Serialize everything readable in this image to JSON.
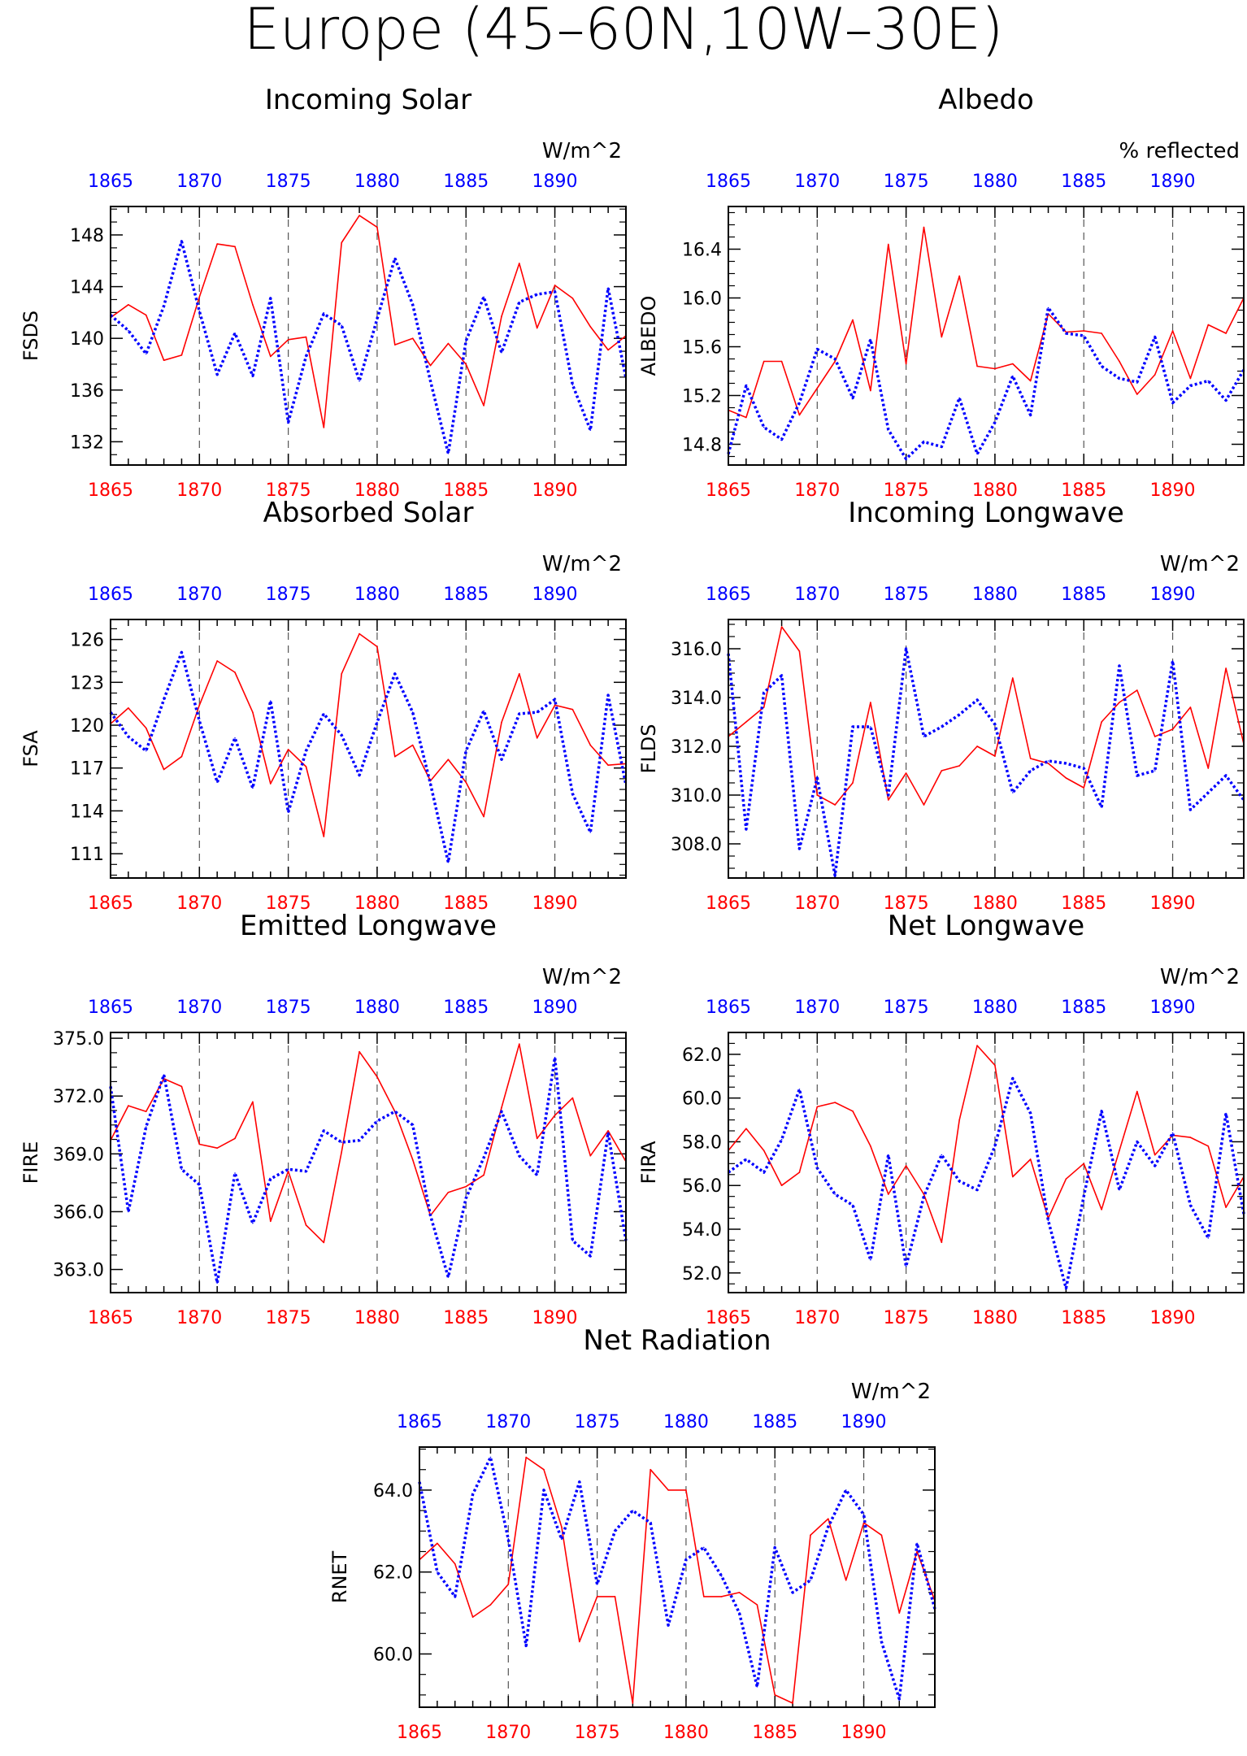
{
  "title": "Europe (45–60N,10W–30E)",
  "colors": {
    "red_series": "#ff0000",
    "blue_series": "#0000ff",
    "red_axis": "#ff0000",
    "blue_axis": "#0000ff",
    "frame": "#000000",
    "grid": "#555555"
  },
  "chart_data": [
    {
      "id": "fsds",
      "type": "line",
      "title": "Incoming Solar",
      "ylabel": "FSDS",
      "units": "W/m^2",
      "x": [
        1865,
        1866,
        1867,
        1868,
        1869,
        1870,
        1871,
        1872,
        1873,
        1874,
        1875,
        1876,
        1877,
        1878,
        1879,
        1880,
        1881,
        1882,
        1883,
        1884,
        1885,
        1886,
        1887,
        1888,
        1889,
        1890,
        1891,
        1892,
        1893,
        1894
      ],
      "xlim": [
        1865,
        1894
      ],
      "ylim": [
        130.2,
        150.2
      ],
      "yticks": [
        132,
        136,
        140,
        144,
        148
      ],
      "ytick_labels": [
        "132",
        "136",
        "140",
        "144",
        "148"
      ],
      "bottom_axis_ticks": [
        "1865",
        "1870",
        "1875",
        "1880",
        "1885",
        "1890"
      ],
      "top_axis_ticks": [
        "1865",
        "1870",
        "1875",
        "1880",
        "1885",
        "1890"
      ],
      "series": [
        {
          "color": "red",
          "style": "solid",
          "values": [
            141.6,
            142.6,
            141.8,
            138.3,
            138.7,
            143.2,
            147.3,
            147.1,
            142.6,
            138.6,
            139.9,
            140.1,
            133.1,
            147.4,
            149.5,
            148.6,
            139.5,
            140.0,
            137.9,
            139.6,
            138.0,
            134.8,
            141.7,
            145.8,
            140.8,
            144.1,
            143.1,
            140.9,
            139.1,
            140.2
          ]
        },
        {
          "color": "blue",
          "style": "dotted",
          "values": [
            141.8,
            140.6,
            138.8,
            142.5,
            147.5,
            142.1,
            137.2,
            140.4,
            137.1,
            143.1,
            133.5,
            138.6,
            141.9,
            141.0,
            136.7,
            141.5,
            146.2,
            142.6,
            136.7,
            131.1,
            139.8,
            143.2,
            138.9,
            142.8,
            143.4,
            143.6,
            136.4,
            132.9,
            143.9,
            136.9
          ]
        }
      ]
    },
    {
      "id": "albedo",
      "type": "line",
      "title": "Albedo",
      "ylabel": "ALBEDO",
      "units": "% reflected",
      "x": [
        1865,
        1866,
        1867,
        1868,
        1869,
        1870,
        1871,
        1872,
        1873,
        1874,
        1875,
        1876,
        1877,
        1878,
        1879,
        1880,
        1881,
        1882,
        1883,
        1884,
        1885,
        1886,
        1887,
        1888,
        1889,
        1890,
        1891,
        1892,
        1893,
        1894
      ],
      "xlim": [
        1865,
        1894
      ],
      "ylim": [
        14.63,
        16.75
      ],
      "yticks": [
        14.8,
        15.2,
        15.6,
        16.0,
        16.4
      ],
      "ytick_labels": [
        "14.8",
        "15.2",
        "15.6",
        "16.0",
        "16.4"
      ],
      "bottom_axis_ticks": [
        "1865",
        "1870",
        "1875",
        "1880",
        "1885",
        "1890"
      ],
      "top_axis_ticks": [
        "1865",
        "1870",
        "1875",
        "1880",
        "1885",
        "1890"
      ],
      "series": [
        {
          "color": "red",
          "style": "solid",
          "values": [
            15.08,
            15.02,
            15.48,
            15.48,
            15.04,
            15.26,
            15.48,
            15.82,
            15.24,
            16.44,
            15.46,
            16.58,
            15.68,
            16.18,
            15.44,
            15.42,
            15.46,
            15.32,
            15.87,
            15.72,
            15.73,
            15.71,
            15.48,
            15.21,
            15.37,
            15.73,
            15.34,
            15.78,
            15.71,
            16.0
          ]
        },
        {
          "color": "blue",
          "style": "dotted",
          "values": [
            14.72,
            15.28,
            14.94,
            14.84,
            15.14,
            15.58,
            15.5,
            15.18,
            15.66,
            14.92,
            14.68,
            14.82,
            14.78,
            15.18,
            14.72,
            14.98,
            15.36,
            15.04,
            15.92,
            15.71,
            15.69,
            15.44,
            15.34,
            15.31,
            15.68,
            15.14,
            15.28,
            15.32,
            15.16,
            15.41
          ]
        }
      ]
    },
    {
      "id": "fsa",
      "type": "line",
      "title": "Absorbed Solar",
      "ylabel": "FSA",
      "units": "W/m^2",
      "x": [
        1865,
        1866,
        1867,
        1868,
        1869,
        1870,
        1871,
        1872,
        1873,
        1874,
        1875,
        1876,
        1877,
        1878,
        1879,
        1880,
        1881,
        1882,
        1883,
        1884,
        1885,
        1886,
        1887,
        1888,
        1889,
        1890,
        1891,
        1892,
        1893,
        1894
      ],
      "xlim": [
        1865,
        1894
      ],
      "ylim": [
        109.3,
        127.4
      ],
      "yticks": [
        111,
        114,
        117,
        120,
        123,
        126
      ],
      "ytick_labels": [
        "111",
        "114",
        "117",
        "120",
        "123",
        "126"
      ],
      "bottom_axis_ticks": [
        "1865",
        "1870",
        "1875",
        "1880",
        "1885",
        "1890"
      ],
      "top_axis_ticks": [
        "1865",
        "1870",
        "1875",
        "1880",
        "1885",
        "1890"
      ],
      "series": [
        {
          "color": "red",
          "style": "solid",
          "values": [
            120.1,
            121.2,
            119.8,
            116.9,
            117.8,
            121.4,
            124.5,
            123.7,
            120.9,
            115.9,
            118.3,
            117.1,
            112.2,
            123.6,
            126.4,
            125.5,
            117.8,
            118.6,
            116.1,
            117.6,
            116.0,
            113.6,
            120.2,
            123.6,
            119.1,
            121.4,
            121.1,
            118.6,
            117.2,
            117.3
          ]
        },
        {
          "color": "blue",
          "style": "dotted",
          "values": [
            120.9,
            119.2,
            118.2,
            121.8,
            125.1,
            120.3,
            116.0,
            119.1,
            115.6,
            121.7,
            113.9,
            118.2,
            120.8,
            119.3,
            116.5,
            120.2,
            123.6,
            120.9,
            115.9,
            110.4,
            118.2,
            121.0,
            117.6,
            120.8,
            120.9,
            121.8,
            115.2,
            112.5,
            122.1,
            115.8
          ]
        }
      ]
    },
    {
      "id": "flds",
      "type": "line",
      "title": "Incoming Longwave",
      "ylabel": "FLDS",
      "units": "W/m^2",
      "x": [
        1865,
        1866,
        1867,
        1868,
        1869,
        1870,
        1871,
        1872,
        1873,
        1874,
        1875,
        1876,
        1877,
        1878,
        1879,
        1880,
        1881,
        1882,
        1883,
        1884,
        1885,
        1886,
        1887,
        1888,
        1889,
        1890,
        1891,
        1892,
        1893,
        1894
      ],
      "xlim": [
        1865,
        1894
      ],
      "ylim": [
        306.6,
        317.2
      ],
      "yticks": [
        308.0,
        310.0,
        312.0,
        314.0,
        316.0
      ],
      "ytick_labels": [
        "308.0",
        "310.0",
        "312.0",
        "314.0",
        "316.0"
      ],
      "bottom_axis_ticks": [
        "1865",
        "1870",
        "1875",
        "1880",
        "1885",
        "1890"
      ],
      "top_axis_ticks": [
        "1865",
        "1870",
        "1875",
        "1880",
        "1885",
        "1890"
      ],
      "series": [
        {
          "color": "red",
          "style": "solid",
          "values": [
            312.4,
            313.0,
            313.6,
            316.9,
            315.9,
            310.0,
            309.6,
            310.5,
            313.8,
            309.8,
            310.9,
            309.6,
            311.0,
            311.2,
            312.0,
            311.6,
            314.8,
            311.5,
            311.3,
            310.7,
            310.3,
            313.0,
            313.8,
            314.3,
            312.4,
            312.7,
            313.6,
            311.1,
            315.2,
            312.1
          ]
        },
        {
          "color": "blue",
          "style": "dotted",
          "values": [
            315.8,
            308.6,
            314.2,
            314.9,
            307.8,
            310.7,
            306.7,
            312.8,
            312.8,
            310.0,
            316.0,
            312.4,
            312.8,
            313.3,
            313.9,
            312.9,
            310.1,
            311.0,
            311.4,
            311.3,
            311.1,
            309.5,
            315.3,
            310.8,
            311.0,
            315.5,
            309.4,
            310.1,
            310.8,
            309.8
          ]
        }
      ]
    },
    {
      "id": "fire",
      "type": "line",
      "title": "Emitted Longwave",
      "ylabel": "FIRE",
      "units": "W/m^2",
      "x": [
        1865,
        1866,
        1867,
        1868,
        1869,
        1870,
        1871,
        1872,
        1873,
        1874,
        1875,
        1876,
        1877,
        1878,
        1879,
        1880,
        1881,
        1882,
        1883,
        1884,
        1885,
        1886,
        1887,
        1888,
        1889,
        1890,
        1891,
        1892,
        1893,
        1894
      ],
      "xlim": [
        1865,
        1894
      ],
      "ylim": [
        361.8,
        375.3
      ],
      "yticks": [
        363.0,
        366.0,
        369.0,
        372.0,
        375.0
      ],
      "ytick_labels": [
        "363.0",
        "366.0",
        "369.0",
        "372.0",
        "375.0"
      ],
      "bottom_axis_ticks": [
        "1865",
        "1870",
        "1875",
        "1880",
        "1885",
        "1890"
      ],
      "top_axis_ticks": [
        "1865",
        "1870",
        "1875",
        "1880",
        "1885",
        "1890"
      ],
      "series": [
        {
          "color": "red",
          "style": "solid",
          "values": [
            369.7,
            371.5,
            371.2,
            372.9,
            372.5,
            369.5,
            369.3,
            369.8,
            371.7,
            365.5,
            368.1,
            365.3,
            364.4,
            369.1,
            374.3,
            373.0,
            371.2,
            368.7,
            365.8,
            367.0,
            367.3,
            367.9,
            371.4,
            374.7,
            369.8,
            371.0,
            371.9,
            368.9,
            370.2,
            368.6
          ]
        },
        {
          "color": "blue",
          "style": "dotted",
          "values": [
            372.5,
            366.0,
            370.4,
            373.1,
            368.2,
            367.4,
            362.3,
            368.0,
            365.4,
            367.7,
            368.2,
            368.1,
            370.2,
            369.6,
            369.7,
            370.7,
            371.2,
            370.5,
            365.8,
            362.6,
            366.7,
            368.8,
            371.2,
            368.9,
            367.9,
            374.0,
            364.5,
            363.7,
            370.1,
            364.5
          ]
        }
      ]
    },
    {
      "id": "fira",
      "type": "line",
      "title": "Net Longwave",
      "ylabel": "FIRA",
      "units": "W/m^2",
      "x": [
        1865,
        1866,
        1867,
        1868,
        1869,
        1870,
        1871,
        1872,
        1873,
        1874,
        1875,
        1876,
        1877,
        1878,
        1879,
        1880,
        1881,
        1882,
        1883,
        1884,
        1885,
        1886,
        1887,
        1888,
        1889,
        1890,
        1891,
        1892,
        1893,
        1894
      ],
      "xlim": [
        1865,
        1894
      ],
      "ylim": [
        51.1,
        63.0
      ],
      "yticks": [
        52.0,
        54.0,
        56.0,
        58.0,
        60.0,
        62.0
      ],
      "ytick_labels": [
        "52.0",
        "54.0",
        "56.0",
        "58.0",
        "60.0",
        "62.0"
      ],
      "bottom_axis_ticks": [
        "1865",
        "1870",
        "1875",
        "1880",
        "1885",
        "1890"
      ],
      "top_axis_ticks": [
        "1865",
        "1870",
        "1875",
        "1880",
        "1885",
        "1890"
      ],
      "series": [
        {
          "color": "red",
          "style": "solid",
          "values": [
            57.6,
            58.6,
            57.6,
            56.0,
            56.6,
            59.6,
            59.8,
            59.4,
            57.8,
            55.6,
            56.9,
            55.6,
            53.4,
            59.0,
            62.4,
            61.5,
            56.4,
            57.2,
            54.5,
            56.3,
            57.0,
            54.9,
            57.6,
            60.3,
            57.4,
            58.3,
            58.2,
            57.8,
            55.0,
            56.4
          ]
        },
        {
          "color": "blue",
          "style": "dotted",
          "values": [
            56.6,
            57.2,
            56.6,
            58.1,
            60.4,
            56.8,
            55.6,
            55.1,
            52.6,
            57.4,
            52.3,
            55.5,
            57.4,
            56.2,
            55.8,
            57.8,
            60.9,
            59.3,
            54.4,
            51.3,
            55.5,
            59.4,
            55.8,
            58.0,
            56.9,
            58.4,
            55.1,
            53.6,
            59.3,
            54.7
          ]
        }
      ]
    },
    {
      "id": "rnet",
      "type": "line",
      "title": "Net Radiation",
      "ylabel": "RNET",
      "units": "W/m^2",
      "x": [
        1865,
        1866,
        1867,
        1868,
        1869,
        1870,
        1871,
        1872,
        1873,
        1874,
        1875,
        1876,
        1877,
        1878,
        1879,
        1880,
        1881,
        1882,
        1883,
        1884,
        1885,
        1886,
        1887,
        1888,
        1889,
        1890,
        1891,
        1892,
        1893,
        1894
      ],
      "xlim": [
        1865,
        1894
      ],
      "ylim": [
        58.7,
        65.05
      ],
      "yticks": [
        60.0,
        62.0,
        64.0
      ],
      "ytick_labels": [
        "60.0",
        "62.0",
        "64.0"
      ],
      "bottom_axis_ticks": [
        "1865",
        "1870",
        "1875",
        "1880",
        "1885",
        "1890"
      ],
      "top_axis_ticks": [
        "1865",
        "1870",
        "1875",
        "1880",
        "1885",
        "1890"
      ],
      "series": [
        {
          "color": "red",
          "style": "solid",
          "values": [
            62.3,
            62.7,
            62.2,
            60.9,
            61.2,
            61.7,
            64.8,
            64.5,
            63.1,
            60.3,
            61.4,
            61.4,
            58.8,
            64.5,
            64.0,
            64.0,
            61.4,
            61.4,
            61.5,
            61.2,
            59.0,
            58.8,
            62.9,
            63.3,
            61.8,
            63.2,
            62.9,
            61.0,
            62.5,
            61.3
          ]
        },
        {
          "color": "blue",
          "style": "dotted",
          "values": [
            64.2,
            62.0,
            61.4,
            63.9,
            64.8,
            62.8,
            60.2,
            64.0,
            62.8,
            64.2,
            61.7,
            63.0,
            63.5,
            63.2,
            60.7,
            62.3,
            62.6,
            61.9,
            61.0,
            59.2,
            62.6,
            61.5,
            61.8,
            63.1,
            64.0,
            63.4,
            60.3,
            58.9,
            62.7,
            61.1
          ]
        }
      ]
    }
  ]
}
